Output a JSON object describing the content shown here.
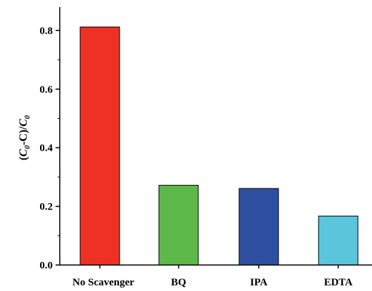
{
  "chart_data": {
    "type": "bar",
    "categories": [
      "No Scavenger",
      "BQ",
      "IPA",
      "EDTA"
    ],
    "values": [
      0.812,
      0.272,
      0.261,
      0.167
    ],
    "colors": [
      "#ee3124",
      "#5cb848",
      "#2e4fa0",
      "#5bc5dc"
    ],
    "ylabel": {
      "open": "(",
      "c0a": "C",
      "sub1": "0",
      "dash": "-C)/",
      "c0b": "C",
      "sub2": "0"
    },
    "ylim": [
      0,
      0.88
    ],
    "yticks": [
      0.0,
      0.2,
      0.4,
      0.6,
      0.8
    ],
    "ytick_labels": [
      "0.0",
      "0.2",
      "0.4",
      "0.6",
      "0.8"
    ],
    "grid": false,
    "legend": "none"
  }
}
